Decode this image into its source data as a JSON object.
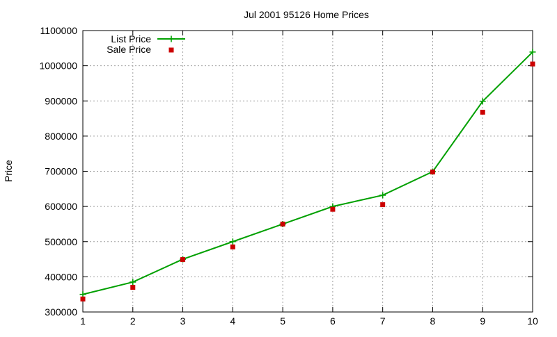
{
  "chart_data": {
    "type": "line",
    "title": "Jul 2001 95126 Home Prices",
    "xlabel": "",
    "ylabel": "Price",
    "x": [
      1,
      2,
      3,
      4,
      5,
      6,
      7,
      8,
      9,
      10
    ],
    "xlim": [
      1,
      10
    ],
    "ylim": [
      300000,
      1100000
    ],
    "x_ticks": [
      "1",
      "2",
      "3",
      "4",
      "5",
      "6",
      "7",
      "8",
      "9",
      "10"
    ],
    "y_ticks": [
      "300000",
      "400000",
      "500000",
      "600000",
      "700000",
      "800000",
      "900000",
      "1000000",
      "1100000"
    ],
    "grid": true,
    "legend_position": "top-left",
    "series": [
      {
        "name": "List Price",
        "style": "line with plus markers",
        "color": "#00a000",
        "values": [
          350000,
          385000,
          450000,
          500000,
          550000,
          600000,
          632000,
          699000,
          899000,
          1039000
        ]
      },
      {
        "name": "Sale Price",
        "style": "square points",
        "color": "#cc0000",
        "values": [
          337000,
          370000,
          449000,
          485000,
          550000,
          592000,
          605000,
          698000,
          868000,
          1005000
        ]
      }
    ]
  }
}
